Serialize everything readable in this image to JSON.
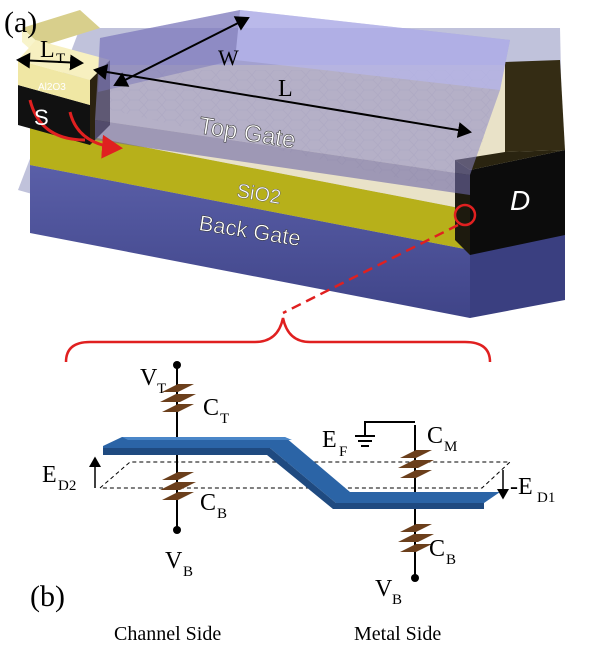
{
  "panel_a": {
    "label": "(a)",
    "dimensions": {
      "lt": "L",
      "lt_sub": "T",
      "w": "W",
      "l": "L"
    },
    "source": "S",
    "drain": "D",
    "oxide": "Al2O3",
    "top_gate": "Top Gate",
    "dielectric": "SiO2",
    "back_gate": "Back Gate"
  },
  "panel_b": {
    "label": "(b)",
    "vt": "V",
    "vt_sub": "T",
    "ct": "C",
    "ct_sub": "T",
    "cb_left": "C",
    "cb_left_sub": "B",
    "vb_left": "V",
    "vb_left_sub": "B",
    "ed2": "E",
    "ed2_sub": "D2",
    "ef": "E",
    "ef_sub": "F",
    "cm": "C",
    "cm_sub": "M",
    "ed1": "-E",
    "ed1_sub": "D1",
    "cb_right": "C",
    "cb_right_sub": "B",
    "vb_right": "V",
    "vb_right_sub": "B",
    "channel_side": "Channel Side",
    "metal_side": "Metal Side"
  }
}
